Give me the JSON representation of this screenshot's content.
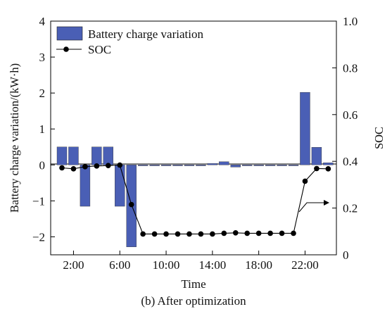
{
  "chart_data": {
    "type": "bar+line",
    "caption": "(b) After optimization",
    "xlabel": "Time",
    "ylabel_left": "Battery charge variation/(kW·h)",
    "ylabel_right": "SOC",
    "x_hours": [
      1,
      2,
      3,
      4,
      5,
      6,
      7,
      8,
      9,
      10,
      11,
      12,
      13,
      14,
      15,
      16,
      17,
      18,
      19,
      20,
      21,
      22,
      23,
      24
    ],
    "x_tick_labels": [
      "2:00",
      "6:00",
      "10:00",
      "14:00",
      "18:00",
      "22:00"
    ],
    "x_tick_hours": [
      2,
      6,
      10,
      14,
      18,
      22
    ],
    "y_left_lim": [
      -2.5,
      4
    ],
    "y_left_ticks": [
      -2,
      -1,
      0,
      1,
      2,
      3,
      4
    ],
    "y_right_lim": [
      0,
      1.0
    ],
    "y_right_ticks": [
      "0",
      "0.2",
      "0.4",
      "0.6",
      "0.8",
      "1.0"
    ],
    "legend": {
      "position": "top-left",
      "entries": [
        "Battery charge variation",
        "SOC"
      ]
    },
    "series": [
      {
        "name": "Battery charge variation",
        "type": "bar",
        "axis": "left",
        "color": "#4a5fb5",
        "values": [
          0.5,
          0.5,
          -1.15,
          0.5,
          0.5,
          -1.15,
          -2.28,
          0.0,
          0.0,
          0.0,
          0.0,
          0.0,
          0.0,
          0.04,
          0.09,
          -0.06,
          0.0,
          0.0,
          0.0,
          0.0,
          0.0,
          2.02,
          0.49,
          0.06
        ]
      },
      {
        "name": "SOC",
        "type": "line",
        "axis": "right",
        "color": "#000000",
        "values": [
          0.372,
          0.368,
          0.377,
          0.38,
          0.382,
          0.384,
          0.215,
          0.089,
          0.089,
          0.089,
          0.089,
          0.089,
          0.089,
          0.089,
          0.092,
          0.094,
          0.092,
          0.092,
          0.092,
          0.092,
          0.092,
          0.315,
          0.369,
          0.368
        ]
      }
    ],
    "annotation": "arrow pointing to right axis"
  }
}
